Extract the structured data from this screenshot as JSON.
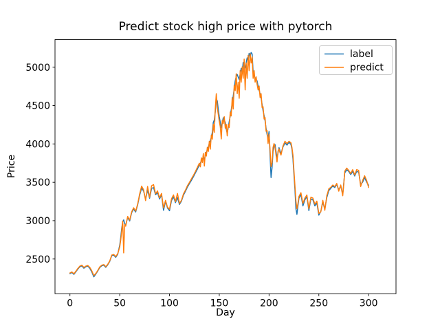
{
  "figure": {
    "background": "#ffffff"
  },
  "chart_data": {
    "type": "line",
    "title": "Predict stock high price with pytorch",
    "xlabel": "Day",
    "ylabel": "Price",
    "grid": false,
    "legend": {
      "position": "upper right",
      "entries": [
        "label",
        "predict"
      ]
    },
    "x_ticks": [
      0,
      50,
      100,
      150,
      200,
      250,
      300
    ],
    "y_ticks": [
      2500,
      3000,
      3500,
      4000,
      4500,
      5000
    ],
    "xlim": [
      -15,
      327.5
    ],
    "ylim": [
      2048,
      5360
    ],
    "x": [
      0,
      2,
      4,
      6,
      8,
      10,
      12,
      14,
      16,
      18,
      20,
      22,
      24,
      26,
      28,
      30,
      32,
      34,
      36,
      38,
      40,
      42,
      44,
      46,
      48,
      50,
      51,
      52,
      53,
      54,
      55,
      56,
      58,
      60,
      62,
      64,
      66,
      68,
      70,
      72,
      74,
      76,
      78,
      80,
      82,
      84,
      86,
      88,
      90,
      92,
      94,
      96,
      98,
      100,
      102,
      104,
      106,
      108,
      110,
      112,
      114,
      116,
      118,
      120,
      122,
      124,
      126,
      128,
      130,
      131,
      132,
      133,
      134,
      135,
      136,
      137,
      138,
      139,
      140,
      141,
      142,
      143,
      144,
      145,
      146,
      147,
      148,
      149,
      150,
      151,
      152,
      153,
      154,
      155,
      156,
      157,
      158,
      159,
      160,
      161,
      162,
      163,
      164,
      165,
      166,
      167,
      168,
      169,
      170,
      171,
      172,
      173,
      174,
      175,
      176,
      177,
      178,
      179,
      180,
      181,
      182,
      183,
      184,
      185,
      186,
      187,
      188,
      189,
      190,
      191,
      192,
      193,
      194,
      195,
      196,
      197,
      198,
      199,
      200,
      201,
      202,
      203,
      204,
      205,
      206,
      207,
      208,
      209,
      210,
      211,
      212,
      214,
      216,
      218,
      220,
      222,
      223,
      224,
      225,
      226,
      227,
      228,
      229,
      230,
      232,
      234,
      236,
      238,
      240,
      242,
      244,
      246,
      248,
      250,
      252,
      254,
      256,
      258,
      260,
      262,
      264,
      266,
      268,
      270,
      272,
      274,
      275,
      276,
      278,
      280,
      282,
      284,
      286,
      288,
      290,
      292,
      294,
      296,
      298,
      300
    ],
    "series": [
      {
        "name": "label",
        "color": "#1f77b4",
        "values": [
          2310,
          2325,
          2300,
          2335,
          2370,
          2400,
          2410,
          2380,
          2400,
          2408,
          2378,
          2330,
          2268,
          2305,
          2345,
          2390,
          2412,
          2420,
          2392,
          2425,
          2470,
          2545,
          2550,
          2522,
          2562,
          2680,
          2780,
          2900,
          2985,
          3010,
          2960,
          2945,
          3040,
          2995,
          3105,
          3152,
          3112,
          3205,
          3330,
          3425,
          3385,
          3282,
          3398,
          3292,
          3420,
          3432,
          3338,
          3365,
          3282,
          3340,
          3135,
          3252,
          3165,
          3130,
          3262,
          3310,
          3235,
          3300,
          3212,
          3255,
          3332,
          3382,
          3438,
          3482,
          3525,
          3572,
          3622,
          3672,
          3725,
          3748,
          3782,
          3805,
          3822,
          3785,
          3862,
          3888,
          3925,
          3958,
          4005,
          4042,
          4085,
          4152,
          4282,
          4312,
          4422,
          4588,
          4560,
          4452,
          4355,
          4282,
          4212,
          4272,
          4342,
          4312,
          4282,
          4195,
          4138,
          4215,
          4292,
          4365,
          4445,
          4532,
          4622,
          4722,
          4822,
          4878,
          4905,
          4872,
          4842,
          4912,
          4985,
          4932,
          5062,
          5025,
          4992,
          5058,
          5122,
          5085,
          5182,
          5145,
          5192,
          5172,
          4942,
          4895,
          4852,
          4832,
          4822,
          4752,
          4705,
          4652,
          4602,
          4515,
          4432,
          4372,
          4302,
          4205,
          4125,
          4072,
          4162,
          3855,
          3562,
          3688,
          3905,
          3962,
          3992,
          3902,
          3812,
          3882,
          3952,
          3912,
          3872,
          3962,
          4012,
          3985,
          4022,
          3992,
          3932,
          3805,
          3602,
          3402,
          3152,
          3082,
          3192,
          3292,
          3342,
          3192,
          3272,
          3312,
          3132,
          3282,
          3272,
          3192,
          3232,
          3072,
          3122,
          3242,
          3152,
          3302,
          3392,
          3422,
          3452,
          3432,
          3472,
          3402,
          3452,
          3342,
          3482,
          3622,
          3662,
          3642,
          3602,
          3642,
          3582,
          3642,
          3632,
          3472,
          3502,
          3562,
          3502,
          3462
        ]
      },
      {
        "name": "predict",
        "color": "#ff7f0e",
        "values": [
          2318,
          2332,
          2308,
          2342,
          2378,
          2408,
          2420,
          2390,
          2408,
          2416,
          2390,
          2345,
          2285,
          2312,
          2352,
          2398,
          2420,
          2428,
          2400,
          2432,
          2476,
          2552,
          2560,
          2532,
          2570,
          2655,
          2745,
          2862,
          2995,
          2580,
          2950,
          2928,
          3055,
          3008,
          3115,
          3168,
          3125,
          3215,
          3348,
          3450,
          3402,
          3262,
          3445,
          3305,
          3455,
          3470,
          3352,
          3388,
          3298,
          3355,
          3165,
          3265,
          3175,
          3150,
          3285,
          3335,
          3248,
          3355,
          3225,
          3265,
          3348,
          3398,
          3455,
          3498,
          3545,
          3590,
          3640,
          3695,
          3750,
          3702,
          3818,
          3758,
          3875,
          3712,
          3890,
          3842,
          3955,
          3902,
          4035,
          3932,
          4115,
          4062,
          4255,
          4152,
          4465,
          4655,
          4475,
          4385,
          4295,
          4225,
          4065,
          4305,
          4265,
          4355,
          4205,
          4255,
          4105,
          4255,
          4215,
          4415,
          4365,
          4605,
          4455,
          4765,
          4695,
          4915,
          4655,
          4805,
          4595,
          4955,
          4805,
          5005,
          4855,
          5105,
          4705,
          5055,
          4855,
          5155,
          4955,
          5175,
          5055,
          5135,
          4855,
          4955,
          4805,
          4875,
          4775,
          4705,
          4755,
          4605,
          4655,
          4475,
          4485,
          4325,
          4345,
          4165,
          4175,
          4005,
          4125,
          3925,
          3705,
          3755,
          3955,
          4005,
          3955,
          3855,
          3765,
          3905,
          3935,
          3885,
          3855,
          3975,
          4035,
          4005,
          4035,
          4015,
          3955,
          3855,
          3655,
          3455,
          3255,
          3155,
          3225,
          3315,
          3365,
          3225,
          3295,
          3335,
          3155,
          3305,
          3295,
          3215,
          3255,
          3095,
          3115,
          3265,
          3135,
          3325,
          3415,
          3435,
          3465,
          3445,
          3485,
          3385,
          3465,
          3325,
          3465,
          3645,
          3685,
          3655,
          3615,
          3665,
          3595,
          3665,
          3655,
          3445,
          3525,
          3585,
          3525,
          3432
        ]
      }
    ]
  }
}
